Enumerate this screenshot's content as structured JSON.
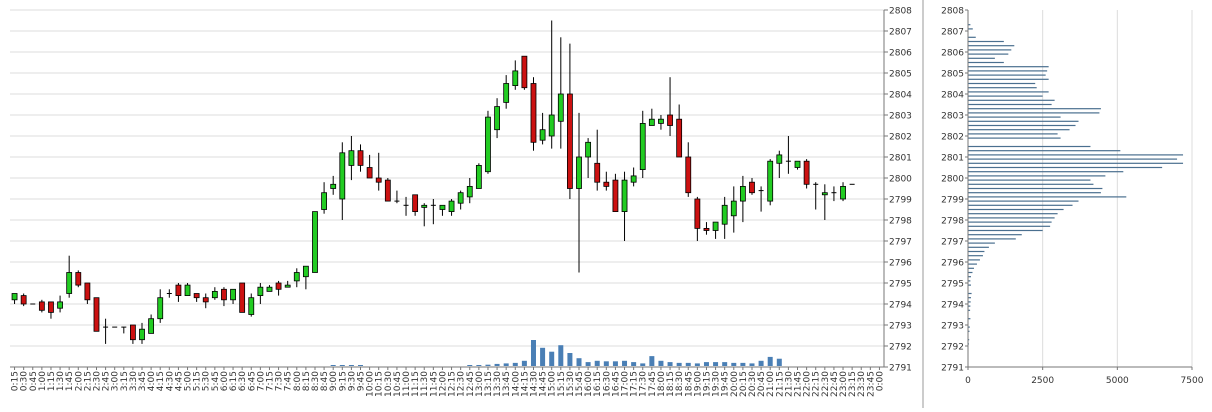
{
  "chart_data": [
    {
      "type": "candlestick",
      "ylim": [
        2791,
        2808
      ],
      "y_ticks": [
        2791,
        2792,
        2793,
        2794,
        2795,
        2796,
        2797,
        2798,
        2799,
        2800,
        2801,
        2802,
        2803,
        2804,
        2805,
        2806,
        2807,
        2808
      ],
      "x_tick_labels": [
        "0:15",
        "0:30",
        "0:45",
        "1:00",
        "1:15",
        "1:30",
        "1:45",
        "2:00",
        "2:15",
        "2:30",
        "2:45",
        "3:00",
        "3:15",
        "3:30",
        "3:45",
        "4:00",
        "4:15",
        "4:30",
        "4:45",
        "5:00",
        "5:15",
        "5:30",
        "5:45",
        "6:00",
        "6:15",
        "6:30",
        "6:45",
        "7:00",
        "7:15",
        "7:30",
        "7:45",
        "8:00",
        "8:15",
        "8:30",
        "8:45",
        "9:00",
        "9:15",
        "9:30",
        "9:45",
        "10:00",
        "10:15",
        "10:30",
        "10:45",
        "11:00",
        "11:15",
        "11:30",
        "11:45",
        "12:00",
        "12:15",
        "12:30",
        "12:45",
        "13:00",
        "13:15",
        "13:30",
        "13:45",
        "14:00",
        "14:15",
        "14:30",
        "14:45",
        "15:00",
        "15:15",
        "15:30",
        "15:45",
        "16:00",
        "16:15",
        "16:30",
        "16:45",
        "17:00",
        "17:15",
        "17:30",
        "17:45",
        "18:00",
        "18:15",
        "18:30",
        "18:45",
        "19:00",
        "19:15",
        "19:30",
        "19:45",
        "20:00",
        "20:15",
        "20:30",
        "20:45",
        "21:00",
        "21:15",
        "21:30",
        "21:45",
        "22:00",
        "22:15",
        "22:30",
        "22:45",
        "23:00",
        "23:15",
        "23:30",
        "23:45",
        "0:00"
      ],
      "candles": [
        {
          "o": 2794.2,
          "h": 2794.5,
          "l": 2794.0,
          "c": 2794.5
        },
        {
          "o": 2794.4,
          "h": 2794.5,
          "l": 2793.9,
          "c": 2794.0
        },
        {
          "o": 2794.0,
          "h": 2794.0,
          "l": 2794.0,
          "c": 2794.0
        },
        {
          "o": 2794.1,
          "h": 2794.2,
          "l": 2793.6,
          "c": 2793.7
        },
        {
          "o": 2794.1,
          "h": 2794.1,
          "l": 2793.3,
          "c": 2793.6
        },
        {
          "o": 2793.8,
          "h": 2794.4,
          "l": 2793.6,
          "c": 2794.1
        },
        {
          "o": 2794.5,
          "h": 2796.3,
          "l": 2794.3,
          "c": 2795.5
        },
        {
          "o": 2795.5,
          "h": 2795.6,
          "l": 2794.8,
          "c": 2794.9
        },
        {
          "o": 2795.0,
          "h": 2795.0,
          "l": 2794.0,
          "c": 2794.2
        },
        {
          "o": 2794.3,
          "h": 2794.3,
          "l": 2792.7,
          "c": 2792.7
        },
        {
          "o": 2792.9,
          "h": 2793.3,
          "l": 2792.1,
          "c": 2792.9
        },
        {
          "o": 2792.9,
          "h": 2792.9,
          "l": 2792.9,
          "c": 2792.9
        },
        {
          "o": 2792.9,
          "h": 2792.9,
          "l": 2792.6,
          "c": 2792.9
        },
        {
          "o": 2793.0,
          "h": 2793.0,
          "l": 2792.1,
          "c": 2792.3
        },
        {
          "o": 2792.3,
          "h": 2793.1,
          "l": 2792.1,
          "c": 2792.8
        },
        {
          "o": 2792.6,
          "h": 2793.5,
          "l": 2792.6,
          "c": 2793.3
        },
        {
          "o": 2793.3,
          "h": 2794.7,
          "l": 2793.1,
          "c": 2794.3
        },
        {
          "o": 2794.5,
          "h": 2794.7,
          "l": 2794.3,
          "c": 2794.5
        },
        {
          "o": 2794.9,
          "h": 2795.0,
          "l": 2794.1,
          "c": 2794.4
        },
        {
          "o": 2794.4,
          "h": 2795.0,
          "l": 2794.4,
          "c": 2794.9
        },
        {
          "o": 2794.5,
          "h": 2794.5,
          "l": 2794.1,
          "c": 2794.3
        },
        {
          "o": 2794.3,
          "h": 2794.5,
          "l": 2793.8,
          "c": 2794.1
        },
        {
          "o": 2794.3,
          "h": 2794.8,
          "l": 2794.2,
          "c": 2794.6
        },
        {
          "o": 2794.7,
          "h": 2794.8,
          "l": 2793.9,
          "c": 2794.2
        },
        {
          "o": 2794.2,
          "h": 2794.7,
          "l": 2794.0,
          "c": 2794.7
        },
        {
          "o": 2795.0,
          "h": 2795.0,
          "l": 2793.6,
          "c": 2793.6
        },
        {
          "o": 2793.5,
          "h": 2794.5,
          "l": 2793.4,
          "c": 2794.3
        },
        {
          "o": 2794.4,
          "h": 2795.0,
          "l": 2794.0,
          "c": 2794.8
        },
        {
          "o": 2794.6,
          "h": 2794.9,
          "l": 2794.6,
          "c": 2794.8
        },
        {
          "o": 2795.0,
          "h": 2795.1,
          "l": 2794.4,
          "c": 2794.7
        },
        {
          "o": 2794.8,
          "h": 2795.1,
          "l": 2794.8,
          "c": 2794.9
        },
        {
          "o": 2795.1,
          "h": 2795.7,
          "l": 2794.8,
          "c": 2795.5
        },
        {
          "o": 2795.3,
          "h": 2795.8,
          "l": 2794.7,
          "c": 2795.8
        },
        {
          "o": 2795.5,
          "h": 2798.4,
          "l": 2795.5,
          "c": 2798.4
        },
        {
          "o": 2798.5,
          "h": 2799.8,
          "l": 2798.3,
          "c": 2799.3
        },
        {
          "o": 2799.5,
          "h": 2800.1,
          "l": 2799.2,
          "c": 2799.7
        },
        {
          "o": 2799.0,
          "h": 2801.7,
          "l": 2798.0,
          "c": 2801.2
        },
        {
          "o": 2800.6,
          "h": 2802.0,
          "l": 2799.9,
          "c": 2801.3
        },
        {
          "o": 2801.3,
          "h": 2801.6,
          "l": 2800.3,
          "c": 2800.6
        },
        {
          "o": 2800.5,
          "h": 2801.1,
          "l": 2800.0,
          "c": 2800.0
        },
        {
          "o": 2800.0,
          "h": 2801.2,
          "l": 2799.4,
          "c": 2799.8
        },
        {
          "o": 2799.9,
          "h": 2800.0,
          "l": 2798.9,
          "c": 2798.9
        },
        {
          "o": 2798.9,
          "h": 2799.4,
          "l": 2798.8,
          "c": 2798.9
        },
        {
          "o": 2798.7,
          "h": 2799.1,
          "l": 2798.2,
          "c": 2798.7
        },
        {
          "o": 2799.2,
          "h": 2799.2,
          "l": 2798.2,
          "c": 2798.4
        },
        {
          "o": 2798.6,
          "h": 2798.8,
          "l": 2797.7,
          "c": 2798.7
        },
        {
          "o": 2798.7,
          "h": 2799.0,
          "l": 2797.8,
          "c": 2798.7
        },
        {
          "o": 2798.5,
          "h": 2798.7,
          "l": 2798.2,
          "c": 2798.7
        },
        {
          "o": 2798.4,
          "h": 2799.0,
          "l": 2798.2,
          "c": 2798.9
        },
        {
          "o": 2798.8,
          "h": 2799.4,
          "l": 2798.5,
          "c": 2799.3
        },
        {
          "o": 2799.1,
          "h": 2800.0,
          "l": 2798.8,
          "c": 2799.6
        },
        {
          "o": 2799.5,
          "h": 2800.7,
          "l": 2799.5,
          "c": 2800.6
        },
        {
          "o": 2800.3,
          "h": 2803.2,
          "l": 2800.2,
          "c": 2802.9
        },
        {
          "o": 2802.3,
          "h": 2803.8,
          "l": 2801.9,
          "c": 2803.4
        },
        {
          "o": 2803.6,
          "h": 2804.9,
          "l": 2803.3,
          "c": 2804.5
        },
        {
          "o": 2804.4,
          "h": 2805.6,
          "l": 2804.2,
          "c": 2805.1
        },
        {
          "o": 2805.8,
          "h": 2805.8,
          "l": 2804.2,
          "c": 2804.3
        },
        {
          "o": 2804.5,
          "h": 2804.8,
          "l": 2801.3,
          "c": 2801.7
        },
        {
          "o": 2801.8,
          "h": 2803.1,
          "l": 2801.6,
          "c": 2802.3
        },
        {
          "o": 2802.0,
          "h": 2807.5,
          "l": 2801.4,
          "c": 2803.0
        },
        {
          "o": 2802.7,
          "h": 2806.7,
          "l": 2801.4,
          "c": 2804.0
        },
        {
          "o": 2804.0,
          "h": 2806.4,
          "l": 2799.0,
          "c": 2799.5
        },
        {
          "o": 2799.5,
          "h": 2803.1,
          "l": 2795.5,
          "c": 2801.0
        },
        {
          "o": 2801.0,
          "h": 2801.9,
          "l": 2800.0,
          "c": 2801.7
        },
        {
          "o": 2800.7,
          "h": 2802.3,
          "l": 2799.4,
          "c": 2799.8
        },
        {
          "o": 2799.8,
          "h": 2800.3,
          "l": 2799.4,
          "c": 2799.6
        },
        {
          "o": 2799.9,
          "h": 2800.2,
          "l": 2798.5,
          "c": 2798.4
        },
        {
          "o": 2798.4,
          "h": 2800.3,
          "l": 2797.0,
          "c": 2799.9
        },
        {
          "o": 2799.8,
          "h": 2800.5,
          "l": 2799.6,
          "c": 2800.1
        },
        {
          "o": 2800.4,
          "h": 2803.2,
          "l": 2800.0,
          "c": 2802.6
        },
        {
          "o": 2802.5,
          "h": 2803.3,
          "l": 2802.5,
          "c": 2802.8
        },
        {
          "o": 2802.6,
          "h": 2803.0,
          "l": 2802.3,
          "c": 2802.8
        },
        {
          "o": 2803.0,
          "h": 2804.8,
          "l": 2802.0,
          "c": 2802.5
        },
        {
          "o": 2802.8,
          "h": 2803.5,
          "l": 2801.0,
          "c": 2801.0
        },
        {
          "o": 2801.0,
          "h": 2801.7,
          "l": 2799.1,
          "c": 2799.3
        },
        {
          "o": 2799.0,
          "h": 2799.1,
          "l": 2797.0,
          "c": 2797.6
        },
        {
          "o": 2797.6,
          "h": 2797.9,
          "l": 2797.3,
          "c": 2797.5
        },
        {
          "o": 2797.5,
          "h": 2797.8,
          "l": 2797.1,
          "c": 2797.9
        },
        {
          "o": 2797.8,
          "h": 2799.1,
          "l": 2797.1,
          "c": 2798.7
        },
        {
          "o": 2798.2,
          "h": 2799.6,
          "l": 2797.4,
          "c": 2798.9
        },
        {
          "o": 2798.9,
          "h": 2800.1,
          "l": 2797.9,
          "c": 2799.6
        },
        {
          "o": 2799.8,
          "h": 2800.0,
          "l": 2799.2,
          "c": 2799.3
        },
        {
          "o": 2799.4,
          "h": 2799.6,
          "l": 2798.4,
          "c": 2799.4
        },
        {
          "o": 2798.9,
          "h": 2800.9,
          "l": 2798.7,
          "c": 2800.8
        },
        {
          "o": 2800.7,
          "h": 2801.3,
          "l": 2800.0,
          "c": 2801.1
        },
        {
          "o": 2800.8,
          "h": 2802.0,
          "l": 2800.2,
          "c": 2800.8
        },
        {
          "o": 2800.5,
          "h": 2800.7,
          "l": 2800.4,
          "c": 2800.8
        },
        {
          "o": 2800.8,
          "h": 2800.9,
          "l": 2799.5,
          "c": 2799.7
        },
        {
          "o": 2799.7,
          "h": 2799.8,
          "l": 2798.5,
          "c": 2799.7
        },
        {
          "o": 2799.2,
          "h": 2799.7,
          "l": 2798.0,
          "c": 2799.3
        },
        {
          "o": 2799.3,
          "h": 2799.6,
          "l": 2798.9,
          "c": 2799.3
        },
        {
          "o": 2799.0,
          "h": 2799.8,
          "l": 2798.9,
          "c": 2799.6
        },
        {
          "o": 2799.7,
          "h": 2799.7,
          "l": 2799.7,
          "c": 2799.7
        }
      ],
      "volume": [
        0,
        0,
        0,
        0,
        0,
        0,
        0,
        0,
        0,
        0,
        0,
        0,
        0,
        0,
        0,
        0,
        0,
        0,
        0,
        0,
        0,
        0,
        0,
        0,
        0,
        0,
        0,
        0,
        0,
        0,
        0,
        0,
        0,
        0,
        0,
        3,
        1,
        1,
        1,
        0,
        0,
        0,
        0,
        0,
        0,
        0,
        0,
        0,
        0,
        0,
        2,
        3,
        5,
        8,
        10,
        12,
        20,
        100,
        70,
        55,
        80,
        50,
        30,
        15,
        20,
        18,
        18,
        20,
        15,
        10,
        38,
        20,
        15,
        12,
        12,
        10,
        15,
        15,
        15,
        12,
        12,
        10,
        20,
        35,
        28,
        0,
        0,
        0,
        0,
        0,
        0,
        0,
        0,
        0,
        0,
        0
      ],
      "colors": {
        "up": "#22cc22",
        "down": "#cc1111",
        "volume": "#4a7fb5"
      }
    },
    {
      "type": "bar",
      "orientation": "horizontal",
      "ylim": [
        2791,
        2808
      ],
      "xlim": [
        0,
        7500
      ],
      "x_ticks": [
        0,
        2500,
        5000,
        7500
      ],
      "y_ticks": [
        2791,
        2792,
        2793,
        2794,
        2795,
        2796,
        2797,
        2798,
        2799,
        2800,
        2801,
        2802,
        2803,
        2804,
        2805,
        2806,
        2807,
        2808
      ],
      "bins": [
        {
          "y": 2807.3,
          "v": 80
        },
        {
          "y": 2807.1,
          "v": 160
        },
        {
          "y": 2806.7,
          "v": 260
        },
        {
          "y": 2806.5,
          "v": 1200
        },
        {
          "y": 2806.3,
          "v": 1550
        },
        {
          "y": 2806.1,
          "v": 1450
        },
        {
          "y": 2805.9,
          "v": 1350
        },
        {
          "y": 2805.7,
          "v": 900
        },
        {
          "y": 2805.5,
          "v": 1200
        },
        {
          "y": 2805.3,
          "v": 2700
        },
        {
          "y": 2805.1,
          "v": 2650
        },
        {
          "y": 2804.9,
          "v": 2600
        },
        {
          "y": 2804.7,
          "v": 2700
        },
        {
          "y": 2804.5,
          "v": 2250
        },
        {
          "y": 2804.3,
          "v": 2300
        },
        {
          "y": 2804.1,
          "v": 2700
        },
        {
          "y": 2803.9,
          "v": 2500
        },
        {
          "y": 2803.7,
          "v": 2900
        },
        {
          "y": 2803.5,
          "v": 2800
        },
        {
          "y": 2803.3,
          "v": 4450
        },
        {
          "y": 2803.1,
          "v": 4400
        },
        {
          "y": 2802.9,
          "v": 3100
        },
        {
          "y": 2802.7,
          "v": 3700
        },
        {
          "y": 2802.5,
          "v": 3600
        },
        {
          "y": 2802.3,
          "v": 3400
        },
        {
          "y": 2802.1,
          "v": 3000
        },
        {
          "y": 2801.9,
          "v": 3100
        },
        {
          "y": 2801.5,
          "v": 4100
        },
        {
          "y": 2801.3,
          "v": 5100
        },
        {
          "y": 2801.1,
          "v": 7200
        },
        {
          "y": 2800.9,
          "v": 7000
        },
        {
          "y": 2800.7,
          "v": 7200
        },
        {
          "y": 2800.5,
          "v": 6500
        },
        {
          "y": 2800.3,
          "v": 5200
        },
        {
          "y": 2800.1,
          "v": 4600
        },
        {
          "y": 2799.9,
          "v": 4100
        },
        {
          "y": 2799.7,
          "v": 4200
        },
        {
          "y": 2799.5,
          "v": 4500
        },
        {
          "y": 2799.3,
          "v": 4450
        },
        {
          "y": 2799.1,
          "v": 5300
        },
        {
          "y": 2798.9,
          "v": 3700
        },
        {
          "y": 2798.7,
          "v": 3500
        },
        {
          "y": 2798.5,
          "v": 3200
        },
        {
          "y": 2798.3,
          "v": 3000
        },
        {
          "y": 2798.1,
          "v": 2900
        },
        {
          "y": 2797.9,
          "v": 2800
        },
        {
          "y": 2797.7,
          "v": 2750
        },
        {
          "y": 2797.5,
          "v": 2500
        },
        {
          "y": 2797.3,
          "v": 1800
        },
        {
          "y": 2797.1,
          "v": 1600
        },
        {
          "y": 2796.9,
          "v": 900
        },
        {
          "y": 2796.7,
          "v": 700
        },
        {
          "y": 2796.5,
          "v": 550
        },
        {
          "y": 2796.3,
          "v": 500
        },
        {
          "y": 2796.1,
          "v": 400
        },
        {
          "y": 2795.9,
          "v": 300
        },
        {
          "y": 2795.7,
          "v": 200
        },
        {
          "y": 2795.5,
          "v": 150
        },
        {
          "y": 2795.3,
          "v": 100
        },
        {
          "y": 2795.1,
          "v": 80
        },
        {
          "y": 2794.9,
          "v": 100
        },
        {
          "y": 2794.5,
          "v": 120
        },
        {
          "y": 2794.3,
          "v": 100
        },
        {
          "y": 2794.1,
          "v": 90
        },
        {
          "y": 2793.9,
          "v": 80
        },
        {
          "y": 2793.7,
          "v": 70
        },
        {
          "y": 2793.3,
          "v": 80
        },
        {
          "y": 2792.9,
          "v": 60
        },
        {
          "y": 2792.7,
          "v": 50
        },
        {
          "y": 2792.3,
          "v": 40
        },
        {
          "y": 2792.1,
          "v": 30
        }
      ],
      "colors": {
        "bar": "#4a6f8f"
      }
    }
  ]
}
